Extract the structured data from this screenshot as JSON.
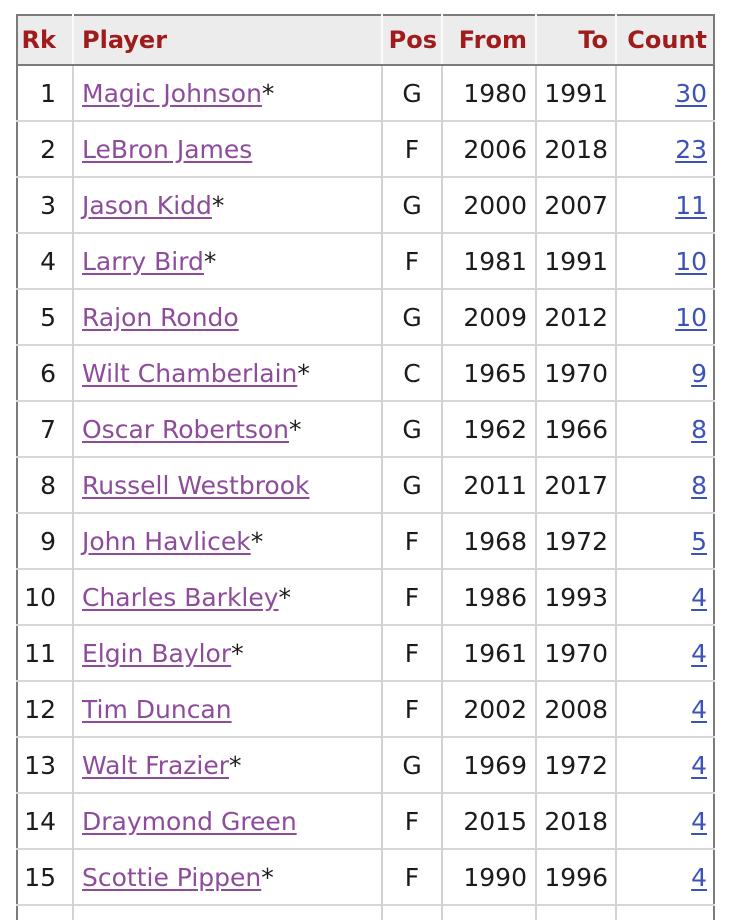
{
  "table": {
    "headers": [
      {
        "key": "rk",
        "label": "Rk"
      },
      {
        "key": "player",
        "label": "Player"
      },
      {
        "key": "pos",
        "label": "Pos"
      },
      {
        "key": "from",
        "label": "From"
      },
      {
        "key": "to",
        "label": "To"
      },
      {
        "key": "count",
        "label": "Count"
      }
    ],
    "rows": [
      {
        "rk": "1",
        "player": "Magic Johnson",
        "star": "*",
        "pos": "G",
        "from": "1980",
        "to": "1991",
        "count": "30"
      },
      {
        "rk": "2",
        "player": "LeBron James",
        "star": "",
        "pos": "F",
        "from": "2006",
        "to": "2018",
        "count": "23"
      },
      {
        "rk": "3",
        "player": "Jason Kidd",
        "star": "*",
        "pos": "G",
        "from": "2000",
        "to": "2007",
        "count": "11"
      },
      {
        "rk": "4",
        "player": "Larry Bird",
        "star": "*",
        "pos": "F",
        "from": "1981",
        "to": "1991",
        "count": "10"
      },
      {
        "rk": "5",
        "player": "Rajon Rondo",
        "star": "",
        "pos": "G",
        "from": "2009",
        "to": "2012",
        "count": "10"
      },
      {
        "rk": "6",
        "player": "Wilt Chamberlain",
        "star": "*",
        "pos": "C",
        "from": "1965",
        "to": "1970",
        "count": "9"
      },
      {
        "rk": "7",
        "player": "Oscar Robertson",
        "star": "*",
        "pos": "G",
        "from": "1962",
        "to": "1966",
        "count": "8"
      },
      {
        "rk": "8",
        "player": "Russell Westbrook",
        "star": "",
        "pos": "G",
        "from": "2011",
        "to": "2017",
        "count": "8"
      },
      {
        "rk": "9",
        "player": "John Havlicek",
        "star": "*",
        "pos": "F",
        "from": "1968",
        "to": "1972",
        "count": "5"
      },
      {
        "rk": "10",
        "player": "Charles Barkley",
        "star": "*",
        "pos": "F",
        "from": "1986",
        "to": "1993",
        "count": "4"
      },
      {
        "rk": "11",
        "player": "Elgin Baylor",
        "star": "*",
        "pos": "F",
        "from": "1961",
        "to": "1970",
        "count": "4"
      },
      {
        "rk": "12",
        "player": "Tim Duncan",
        "star": "",
        "pos": "F",
        "from": "2002",
        "to": "2008",
        "count": "4"
      },
      {
        "rk": "13",
        "player": "Walt Frazier",
        "star": "*",
        "pos": "G",
        "from": "1969",
        "to": "1972",
        "count": "4"
      },
      {
        "rk": "14",
        "player": "Draymond Green",
        "star": "",
        "pos": "F",
        "from": "2015",
        "to": "2018",
        "count": "4"
      },
      {
        "rk": "15",
        "player": "Scottie Pippen",
        "star": "*",
        "pos": "F",
        "from": "1990",
        "to": "1996",
        "count": "4"
      }
    ]
  },
  "colors": {
    "header_text": "#a01c1c",
    "header_bg": "#ececec",
    "player_link": "#8e4b9b",
    "count_link": "#3d52b8",
    "body_text": "#1b1b1b",
    "outer_border": "#7b7b7b",
    "divider": "#d2d2d2"
  }
}
